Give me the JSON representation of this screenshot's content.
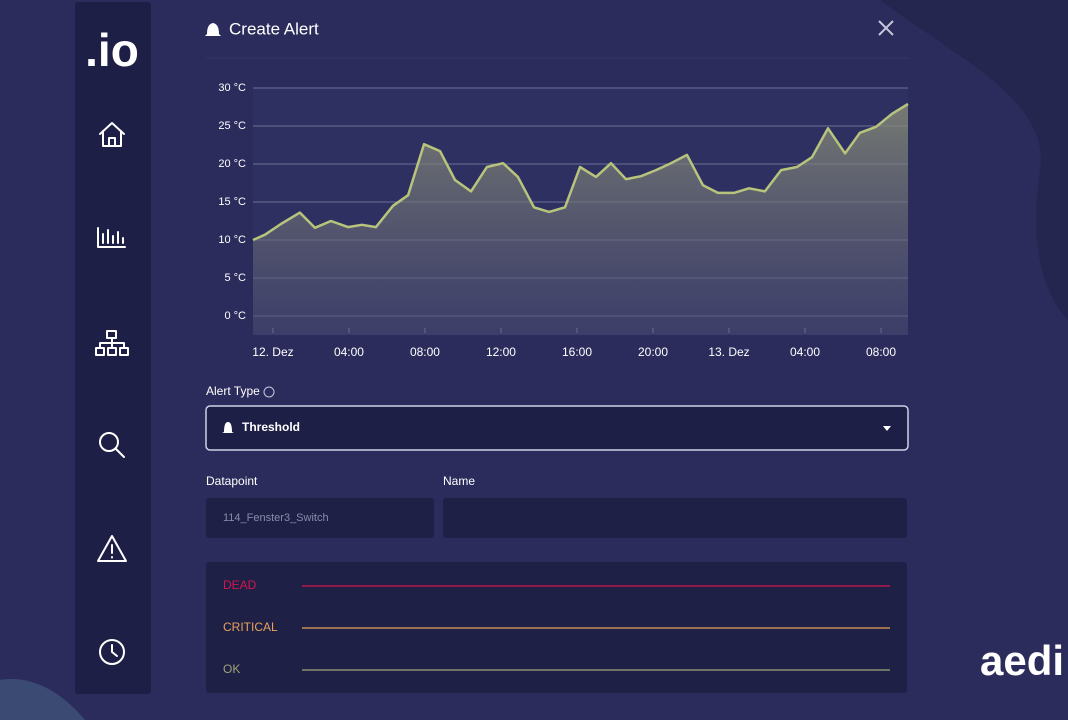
{
  "sidebar": {
    "logo": ".io"
  },
  "modal": {
    "title": "Create Alert"
  },
  "chart_data": {
    "type": "area",
    "color": "#b8c47c",
    "x": [
      -1.05,
      -0.42,
      0.42,
      1.42,
      2.21,
      3.05,
      3.95,
      4.68,
      5.42,
      6.32,
      7.11,
      7.95,
      8.79,
      9.58,
      10.42,
      11.26,
      12.11,
      12.89,
      13.74,
      14.53,
      15.37,
      16.16,
      17.0,
      17.79,
      18.58,
      19.37,
      20.16,
      20.95,
      21.79,
      22.63,
      23.42,
      24.26,
      25.05,
      25.89,
      26.74,
      27.58,
      28.37,
      29.21,
      30.11,
      30.89,
      31.74,
      32.58,
      33.42
    ],
    "values": [
      10.0,
      10.7,
      12.1,
      13.6,
      11.6,
      12.5,
      11.7,
      12.0,
      11.7,
      14.5,
      15.9,
      22.6,
      21.7,
      17.9,
      16.4,
      19.6,
      20.1,
      18.3,
      14.3,
      13.7,
      14.3,
      19.6,
      18.3,
      20.1,
      18.0,
      18.4,
      19.2,
      20.1,
      21.2,
      17.2,
      16.2,
      16.2,
      16.8,
      16.4,
      19.2,
      19.6,
      20.9,
      24.7,
      21.4,
      24.1,
      24.9,
      26.6,
      27.9
    ],
    "xlim": [
      -1.05,
      33.42
    ],
    "xticks": [
      {
        "value": 0,
        "label": "12. Dez"
      },
      {
        "value": 4,
        "label": "04:00"
      },
      {
        "value": 8,
        "label": "08:00"
      },
      {
        "value": 12,
        "label": "12:00"
      },
      {
        "value": 16,
        "label": "16:00"
      },
      {
        "value": 20,
        "label": "20:00"
      },
      {
        "value": 24,
        "label": "13. Dez"
      },
      {
        "value": 28,
        "label": "04:00"
      },
      {
        "value": 32,
        "label": "08:00"
      }
    ],
    "ylim": [
      -2.5,
      30
    ],
    "yticks": [
      {
        "value": 0,
        "label": "0 °C"
      },
      {
        "value": 5,
        "label": "5 °C"
      },
      {
        "value": 10,
        "label": "10 °C"
      },
      {
        "value": 15,
        "label": "15 °C"
      },
      {
        "value": 20,
        "label": "20 °C"
      },
      {
        "value": 25,
        "label": "25 °C"
      },
      {
        "value": 30,
        "label": "30 °C"
      }
    ],
    "grid": true
  },
  "form": {
    "alert_type_label": "Alert Type",
    "alert_type_value": "Threshold",
    "datapoint_label": "Datapoint",
    "datapoint_value": "114_Fenster3_Switch",
    "name_label": "Name"
  },
  "thresholds": [
    {
      "label": "DEAD",
      "color": "#d0164e"
    },
    {
      "label": "CRITICAL",
      "color": "#e8a25a"
    },
    {
      "label": "OK",
      "color": "#9ea276"
    }
  ],
  "brand": "aedi"
}
